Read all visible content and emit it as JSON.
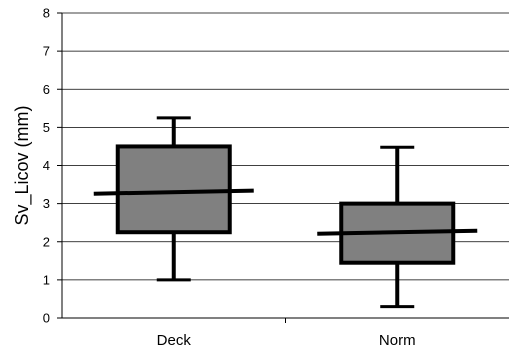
{
  "chart_data": {
    "type": "boxplot",
    "title": "",
    "xlabel": "",
    "ylabel": "Sv_Licov (mm)",
    "ylim": [
      0,
      8
    ],
    "yticks": [
      0,
      1,
      2,
      3,
      4,
      5,
      6,
      7,
      8
    ],
    "ytick_labels": [
      "0",
      "1",
      "2",
      "3",
      "4",
      "5",
      "6",
      "7",
      "8"
    ],
    "grid": true,
    "categories": [
      "Deck",
      "Norm"
    ],
    "boxes": [
      {
        "category": "Deck",
        "min": 1.0,
        "q1": 2.25,
        "median": 3.3,
        "q3": 4.5,
        "max": 5.25
      },
      {
        "category": "Norm",
        "min": 0.3,
        "q1": 1.45,
        "median": 2.25,
        "q3": 3.0,
        "max": 4.48
      }
    ],
    "box_fill": "#808080",
    "line_color": "#000000"
  }
}
